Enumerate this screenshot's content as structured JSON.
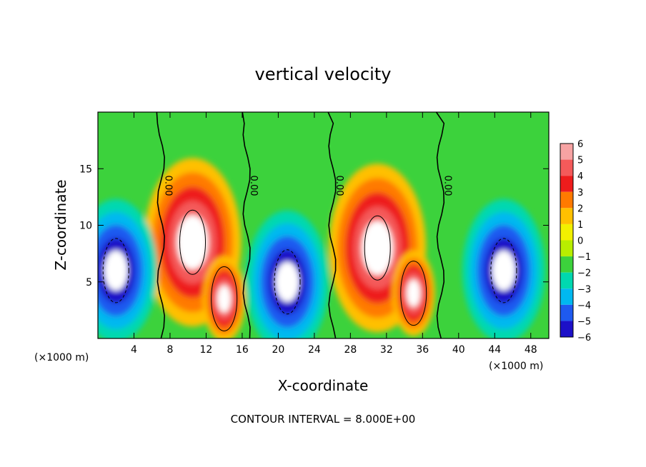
{
  "chart_data": {
    "type": "heatmap",
    "title": "vertical velocity",
    "xlabel": "X-coordinate",
    "ylabel": "Z-coordinate",
    "x_unit": "(×1000 m)",
    "x_unit_left": "(×1000 m)",
    "xlim": [
      0,
      50
    ],
    "ylim": [
      0,
      20
    ],
    "x_ticks": [
      4,
      8,
      12,
      16,
      20,
      24,
      28,
      32,
      36,
      40,
      44,
      48
    ],
    "y_ticks": [
      5,
      10,
      15
    ],
    "colorbar": {
      "ticks": [
        6,
        5,
        4,
        3,
        2,
        1,
        0,
        -1,
        -2,
        -3,
        -4,
        -5,
        -6
      ],
      "colors": [
        "#f7a3a3",
        "#f45a5a",
        "#ee1c1c",
        "#ff7a00",
        "#ffc000",
        "#f2f000",
        "#b8ee00",
        "#3cd23c",
        "#00d8b0",
        "#00b8f0",
        "#1e5af0",
        "#1c10c8",
        "#6a00b0"
      ]
    },
    "contour_label": "0.00",
    "zero_contour_x": [
      7,
      16.5,
      26,
      38
    ],
    "updraft_centers": [
      {
        "x": 10.5,
        "z": 8.5
      },
      {
        "x": 14,
        "z": 3.5
      },
      {
        "x": 31,
        "z": 8
      },
      {
        "x": 35,
        "z": 4
      }
    ],
    "downdraft_centers": [
      {
        "x": 2,
        "z": 6
      },
      {
        "x": 21,
        "z": 5
      },
      {
        "x": 45,
        "z": 6
      }
    ],
    "footer": "CONTOUR INTERVAL = 8.000E+00"
  }
}
